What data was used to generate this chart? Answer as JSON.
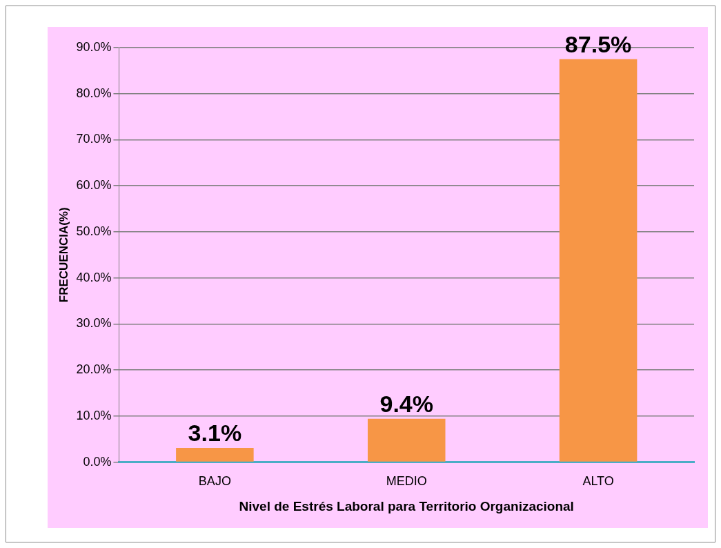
{
  "chart_data": {
    "type": "bar",
    "xlabel": "Nivel de Estrés Laboral para Territorio Organizacional",
    "ylabel": "FRECUENCIA(%)",
    "categories": [
      "BAJO",
      "MEDIO",
      "ALTO"
    ],
    "values": [
      3.1,
      9.4,
      87.5
    ],
    "color": "#f79646",
    "value_labels": [
      "3.1%",
      "9.4%",
      "87.5%"
    ],
    "ylim": [
      0,
      90
    ],
    "yticks": [
      {
        "value": 0,
        "label": "0.0%"
      },
      {
        "value": 10,
        "label": "10.0%"
      },
      {
        "value": 20,
        "label": "20.0%"
      },
      {
        "value": 30,
        "label": "30.0%"
      },
      {
        "value": 40,
        "label": "40.0%"
      },
      {
        "value": 50,
        "label": "50.0%"
      },
      {
        "value": 60,
        "label": "60.0%"
      },
      {
        "value": 70,
        "label": "70.0%"
      },
      {
        "value": 80,
        "label": "80.0%"
      },
      {
        "value": 90,
        "label": "90.0%"
      }
    ],
    "grid": "y",
    "legend": false
  }
}
